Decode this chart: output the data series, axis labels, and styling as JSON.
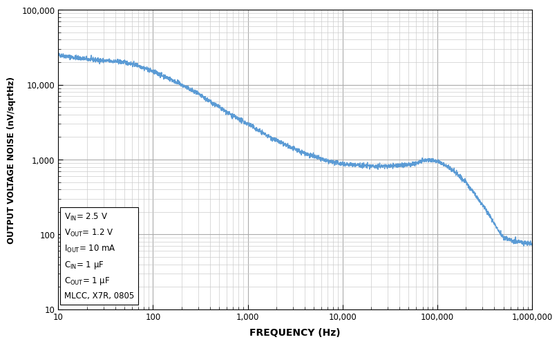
{
  "title": "",
  "xlabel": "FREQUENCY (Hz)",
  "ylabel": "OUTPUT VOLTAGE NOISE (nV/sqrtHz)",
  "xlim": [
    10,
    1000000
  ],
  "ylim": [
    10,
    100000
  ],
  "line_color": "#5B9BD5",
  "line_width": 1.0,
  "background_color": "#ffffff",
  "grid_major_color": "#aaaaaa",
  "grid_minor_color": "#cccccc",
  "figsize": [
    7.88,
    5.1
  ],
  "dpi": 100,
  "freq_points": [
    10,
    15,
    20,
    30,
    50,
    70,
    100,
    150,
    200,
    300,
    500,
    700,
    1000,
    1500,
    2000,
    3000,
    5000,
    7000,
    10000,
    15000,
    20000,
    30000,
    50000,
    70000,
    80000,
    90000,
    100000,
    120000,
    150000,
    200000,
    300000,
    500000,
    700000,
    1000000
  ],
  "noise_points": [
    25000,
    23000,
    22000,
    21000,
    20000,
    18000,
    15000,
    12000,
    10000,
    7500,
    5000,
    3800,
    3000,
    2200,
    1800,
    1400,
    1100,
    950,
    880,
    840,
    820,
    820,
    850,
    950,
    1000,
    980,
    960,
    850,
    700,
    500,
    250,
    90,
    80,
    75
  ],
  "x_major_ticks": [
    10,
    100,
    1000,
    10000,
    100000,
    1000000
  ],
  "x_labels": [
    "10",
    "100",
    "1,000",
    "10,000",
    "100,000",
    "1,000,000"
  ],
  "y_major_ticks": [
    10,
    100,
    1000,
    10000,
    100000
  ],
  "y_labels": [
    "10",
    "100",
    "1,000",
    "10,000",
    "100,000"
  ]
}
